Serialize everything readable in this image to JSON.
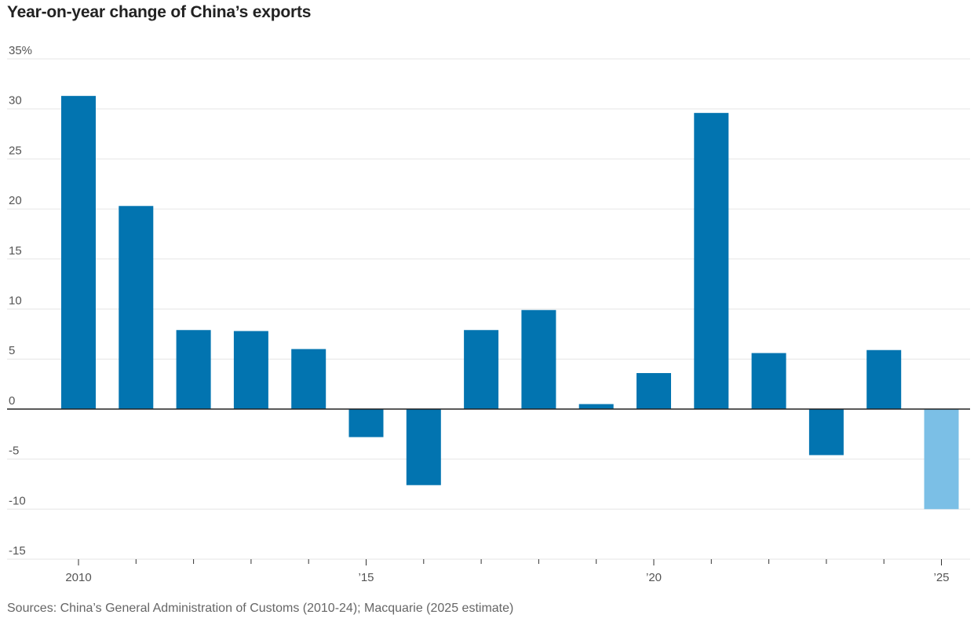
{
  "chart_data": {
    "type": "bar",
    "title": "Year-on-year change of China’s exports",
    "xlabel": "",
    "ylabel": "",
    "categories": [
      "2010",
      "2011",
      "2012",
      "2013",
      "2014",
      "2015",
      "2016",
      "2017",
      "2018",
      "2019",
      "2020",
      "2021",
      "2022",
      "2023",
      "2024",
      "2025"
    ],
    "values": [
      31.3,
      20.3,
      7.9,
      7.8,
      6.0,
      -2.8,
      -7.6,
      7.9,
      9.9,
      0.5,
      3.6,
      29.6,
      5.6,
      -4.6,
      5.9,
      -10.0
    ],
    "estimate_flags": [
      false,
      false,
      false,
      false,
      false,
      false,
      false,
      false,
      false,
      false,
      false,
      false,
      false,
      false,
      false,
      true
    ],
    "ylim": [
      -15,
      35
    ],
    "yticks": [
      35,
      30,
      25,
      20,
      15,
      10,
      5,
      0,
      -5,
      -10,
      -15
    ],
    "ytick_labels": [
      "35%",
      "30",
      "25",
      "20",
      "15",
      "10",
      "5",
      "0",
      "-5",
      "-10",
      "-15"
    ],
    "xtick_labels": [
      {
        "category": "2010",
        "label": "2010"
      },
      {
        "category": "2015",
        "label": "’15"
      },
      {
        "category": "2020",
        "label": "’20"
      },
      {
        "category": "2025",
        "label": "’25"
      }
    ],
    "grid": true,
    "colors": {
      "actual": "#0274b0",
      "estimate": "#7bbfe6",
      "gridline": "#e6e6e6",
      "zero_line": "#222222"
    },
    "source": "Sources: China’s General Administration of Customs (2010-24); Macquarie (2025 estimate)"
  }
}
